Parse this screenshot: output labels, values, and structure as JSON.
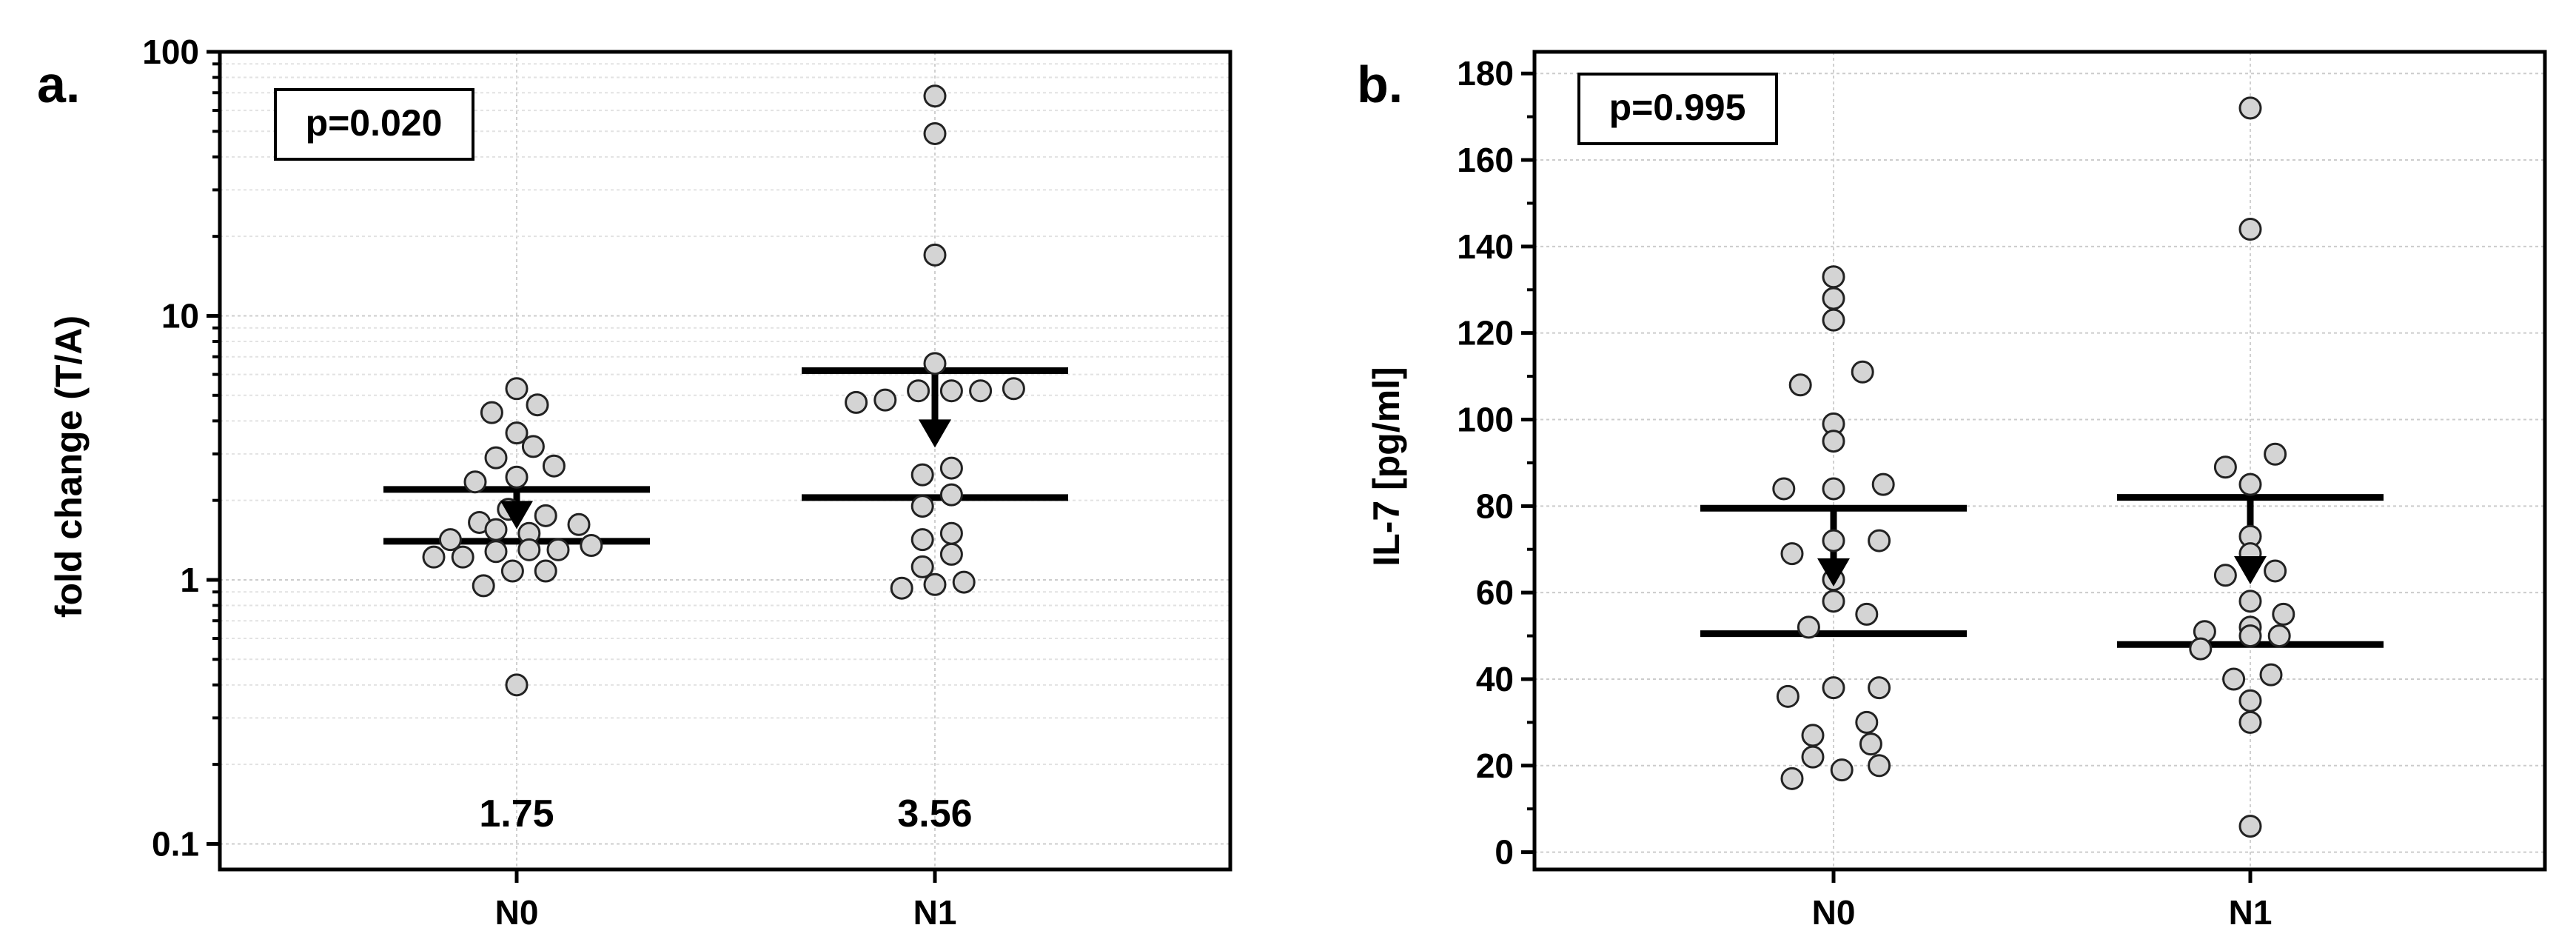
{
  "chart_data": [
    {
      "panel": "a.",
      "type": "scatter",
      "ylabel": "fold change (T/A)",
      "yscale": "log",
      "ylim": [
        0.08,
        100
      ],
      "yticks": [
        0.1,
        1,
        10,
        100
      ],
      "ytick_labels": [
        "0.1",
        "1",
        "10",
        "100"
      ],
      "categories": [
        "N0",
        "N1"
      ],
      "grid": true,
      "pvalue": "p=0.020",
      "groups": [
        {
          "category": "N0",
          "median_label": "1.75",
          "median": 1.75,
          "q1": 1.4,
          "q3": 2.2,
          "points": [
            {
              "dx": 0.0,
              "y": 5.3
            },
            {
              "dx": 0.05,
              "y": 4.6
            },
            {
              "dx": -0.06,
              "y": 4.3
            },
            {
              "dx": 0.0,
              "y": 3.6
            },
            {
              "dx": 0.04,
              "y": 3.2
            },
            {
              "dx": -0.05,
              "y": 2.9
            },
            {
              "dx": 0.09,
              "y": 2.7
            },
            {
              "dx": -0.1,
              "y": 2.35
            },
            {
              "dx": 0.0,
              "y": 2.45
            },
            {
              "dx": -0.02,
              "y": 1.85
            },
            {
              "dx": 0.07,
              "y": 1.75
            },
            {
              "dx": 0.15,
              "y": 1.62
            },
            {
              "dx": -0.09,
              "y": 1.65
            },
            {
              "dx": -0.05,
              "y": 1.55
            },
            {
              "dx": 0.03,
              "y": 1.5
            },
            {
              "dx": -0.16,
              "y": 1.42
            },
            {
              "dx": 0.18,
              "y": 1.35
            },
            {
              "dx": 0.1,
              "y": 1.3
            },
            {
              "dx": 0.03,
              "y": 1.3
            },
            {
              "dx": -0.05,
              "y": 1.28
            },
            {
              "dx": -0.13,
              "y": 1.22
            },
            {
              "dx": -0.2,
              "y": 1.22
            },
            {
              "dx": -0.01,
              "y": 1.08
            },
            {
              "dx": 0.07,
              "y": 1.08
            },
            {
              "dx": -0.08,
              "y": 0.95
            },
            {
              "dx": 0.0,
              "y": 0.4
            }
          ]
        },
        {
          "category": "N1",
          "median_label": "3.56",
          "median": 3.56,
          "q1": 2.05,
          "q3": 6.2,
          "points": [
            {
              "dx": 0.0,
              "y": 68
            },
            {
              "dx": 0.0,
              "y": 49
            },
            {
              "dx": 0.0,
              "y": 17
            },
            {
              "dx": 0.0,
              "y": 6.6
            },
            {
              "dx": -0.04,
              "y": 5.2
            },
            {
              "dx": 0.04,
              "y": 5.2
            },
            {
              "dx": 0.11,
              "y": 5.2
            },
            {
              "dx": 0.19,
              "y": 5.3
            },
            {
              "dx": -0.12,
              "y": 4.8
            },
            {
              "dx": -0.19,
              "y": 4.7
            },
            {
              "dx": 0.04,
              "y": 2.65
            },
            {
              "dx": -0.03,
              "y": 2.5
            },
            {
              "dx": 0.04,
              "y": 2.1
            },
            {
              "dx": -0.03,
              "y": 1.9
            },
            {
              "dx": 0.04,
              "y": 1.5
            },
            {
              "dx": -0.03,
              "y": 1.42
            },
            {
              "dx": 0.04,
              "y": 1.25
            },
            {
              "dx": -0.03,
              "y": 1.12
            },
            {
              "dx": 0.07,
              "y": 0.98
            },
            {
              "dx": 0.0,
              "y": 0.96
            },
            {
              "dx": -0.08,
              "y": 0.93
            }
          ]
        }
      ]
    },
    {
      "panel": "b.",
      "type": "scatter",
      "ylabel": "IL-7 [pg/ml]",
      "yscale": "linear",
      "ylim": [
        -4,
        185
      ],
      "yticks": [
        0,
        20,
        40,
        60,
        80,
        100,
        120,
        140,
        160,
        180
      ],
      "ytick_labels": [
        "0",
        "20",
        "40",
        "60",
        "80",
        "100",
        "120",
        "140",
        "160",
        "180"
      ],
      "categories": [
        "N0",
        "N1"
      ],
      "grid": true,
      "pvalue": "p=0.995",
      "groups": [
        {
          "category": "N0",
          "median": 64.5,
          "q1": 50.5,
          "q3": 79.5,
          "points": [
            {
              "dx": 0.0,
              "y": 133
            },
            {
              "dx": 0.0,
              "y": 128
            },
            {
              "dx": 0.0,
              "y": 123
            },
            {
              "dx": 0.07,
              "y": 111
            },
            {
              "dx": -0.08,
              "y": 108
            },
            {
              "dx": 0.0,
              "y": 99
            },
            {
              "dx": 0.0,
              "y": 95
            },
            {
              "dx": 0.12,
              "y": 85
            },
            {
              "dx": -0.12,
              "y": 84
            },
            {
              "dx": 0.0,
              "y": 84
            },
            {
              "dx": 0.0,
              "y": 72
            },
            {
              "dx": 0.11,
              "y": 72
            },
            {
              "dx": -0.1,
              "y": 69
            },
            {
              "dx": 0.0,
              "y": 63
            },
            {
              "dx": 0.0,
              "y": 58
            },
            {
              "dx": 0.08,
              "y": 55
            },
            {
              "dx": -0.06,
              "y": 52
            },
            {
              "dx": 0.0,
              "y": 38
            },
            {
              "dx": 0.11,
              "y": 38
            },
            {
              "dx": -0.11,
              "y": 36
            },
            {
              "dx": 0.08,
              "y": 30
            },
            {
              "dx": -0.05,
              "y": 27
            },
            {
              "dx": 0.09,
              "y": 25
            },
            {
              "dx": -0.05,
              "y": 22
            },
            {
              "dx": 0.11,
              "y": 20
            },
            {
              "dx": 0.02,
              "y": 19
            },
            {
              "dx": -0.1,
              "y": 17
            }
          ]
        },
        {
          "category": "N1",
          "median": 65,
          "q1": 48,
          "q3": 82,
          "points": [
            {
              "dx": 0.0,
              "y": 172
            },
            {
              "dx": 0.0,
              "y": 144
            },
            {
              "dx": 0.06,
              "y": 92
            },
            {
              "dx": -0.06,
              "y": 89
            },
            {
              "dx": 0.0,
              "y": 85
            },
            {
              "dx": 0.0,
              "y": 73
            },
            {
              "dx": 0.0,
              "y": 69
            },
            {
              "dx": 0.06,
              "y": 65
            },
            {
              "dx": -0.06,
              "y": 64
            },
            {
              "dx": 0.0,
              "y": 58
            },
            {
              "dx": 0.08,
              "y": 55
            },
            {
              "dx": 0.0,
              "y": 52
            },
            {
              "dx": -0.11,
              "y": 51
            },
            {
              "dx": 0.0,
              "y": 50
            },
            {
              "dx": 0.07,
              "y": 50
            },
            {
              "dx": -0.12,
              "y": 47
            },
            {
              "dx": 0.05,
              "y": 41
            },
            {
              "dx": -0.04,
              "y": 40
            },
            {
              "dx": 0.0,
              "y": 35
            },
            {
              "dx": 0.0,
              "y": 30
            },
            {
              "dx": 0.0,
              "y": 6
            }
          ]
        }
      ]
    }
  ]
}
